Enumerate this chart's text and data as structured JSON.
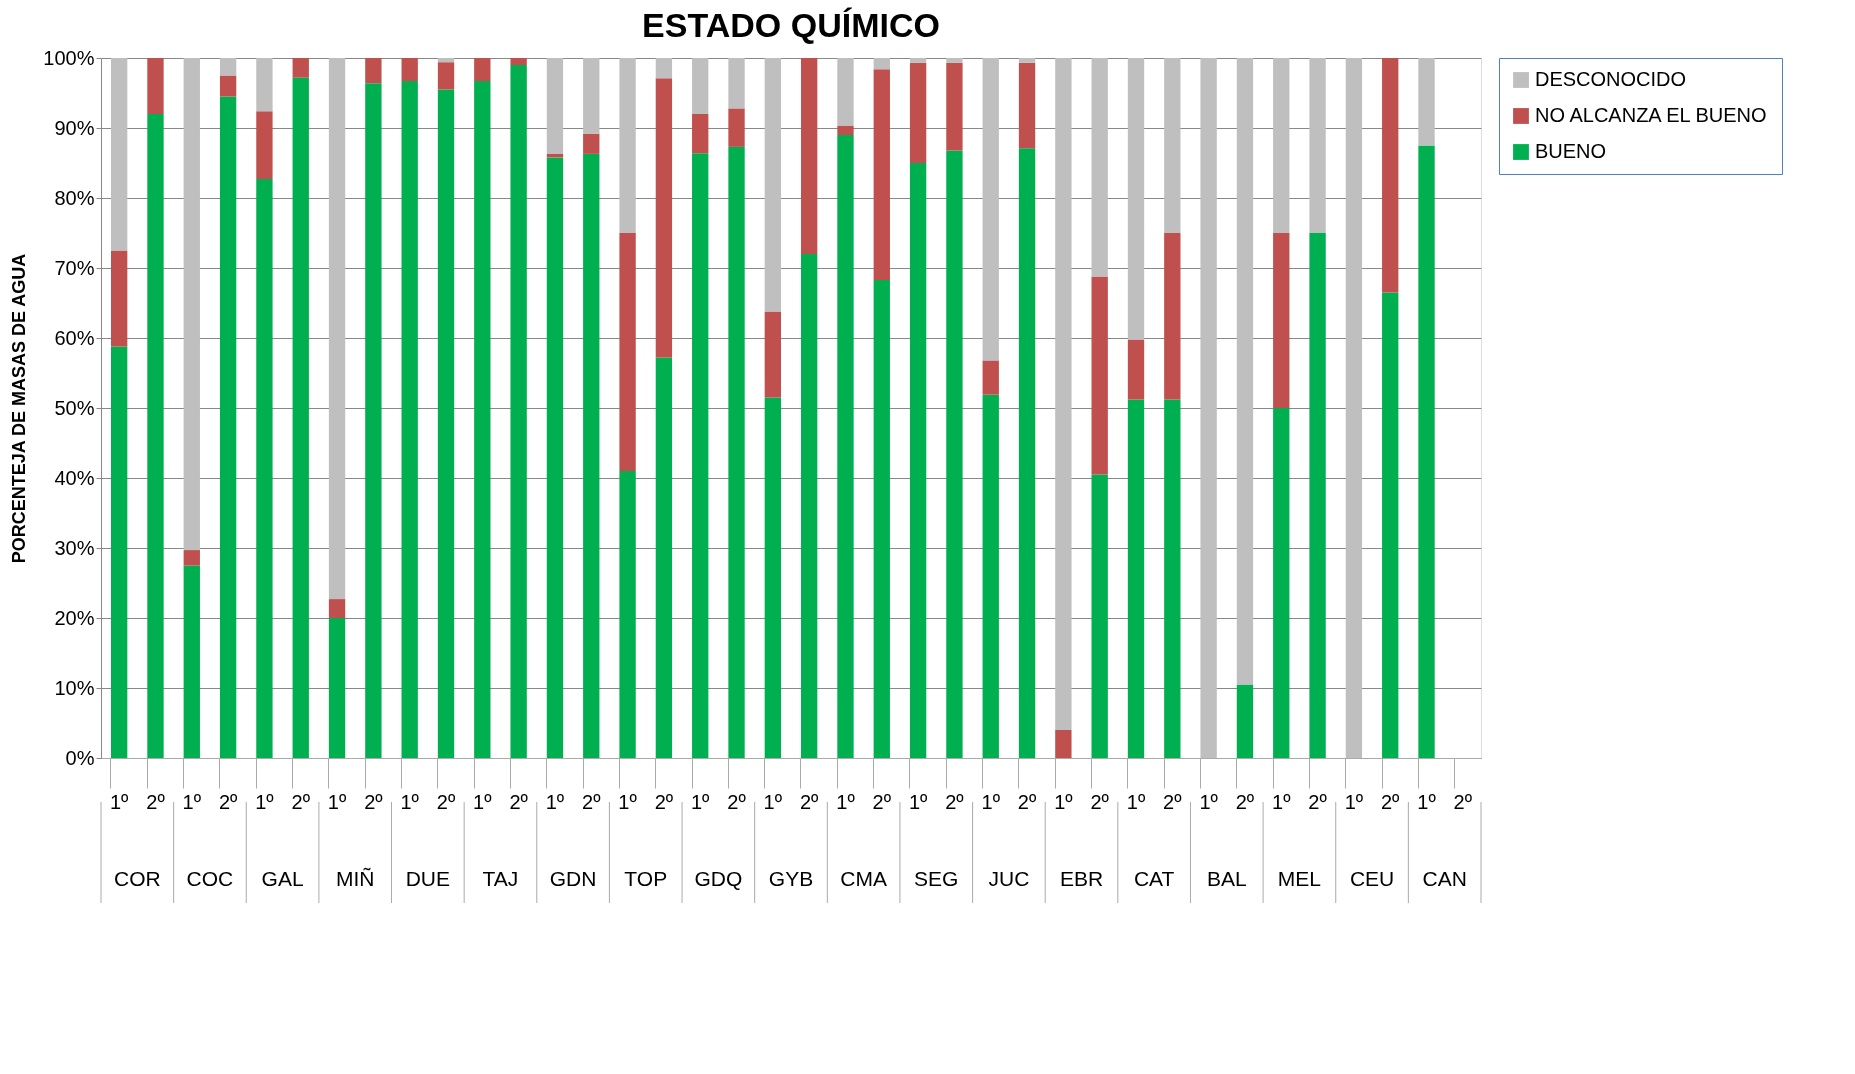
{
  "chart_data": {
    "type": "bar",
    "title": "ESTADO QUÍMICO",
    "ylabel": "PORCENTEJA DE MASAS DE AGUA",
    "categories": [
      "1º",
      "2º",
      "1º",
      "2º",
      "1º",
      "2º",
      "1º",
      "2º",
      "1º",
      "2º",
      "1º",
      "2º",
      "1º",
      "2º",
      "1º",
      "2º",
      "1º",
      "2º",
      "1º",
      "2º",
      "1º",
      "2º",
      "1º",
      "2º",
      "1º",
      "2º",
      "1º",
      "2º",
      "1º",
      "2º",
      "1º",
      "2º",
      "1º",
      "2º",
      "1º",
      "2º",
      "1º",
      "2º"
    ],
    "annotations": [
      "COR",
      "COC",
      "GAL",
      "MIÑ",
      "DUE",
      "TAJ",
      "GDN",
      "TOP",
      "GDQ",
      "GYB",
      "CMA",
      "SEG",
      "JUC",
      "EBR",
      "CAT",
      "BAL",
      "MEL",
      "CEU",
      "CAN"
    ],
    "stacked": true,
    "series": [
      {
        "name": "BUENO",
        "color": "#00b050",
        "values": [
          58.8,
          92,
          27.5,
          94.5,
          82.7,
          97.2,
          20,
          96.4,
          96.7,
          95.5,
          96.7,
          99,
          85.8,
          86.3,
          41,
          57.2,
          86.4,
          87.3,
          51.5,
          72,
          89,
          68.3,
          85,
          86.8,
          51.9,
          87.1,
          0,
          40.5,
          51.2,
          51.2,
          0,
          10.5,
          50,
          75,
          0,
          66.5,
          87.5,
          null
        ]
      },
      {
        "name": "NO ALCANZA EL BUENO",
        "color": "#c0504d",
        "values": [
          13.7,
          8,
          2.2,
          3,
          9.7,
          2.8,
          2.7,
          3.6,
          3.3,
          3.9,
          3.3,
          1,
          0.5,
          2.9,
          34,
          39.9,
          5.6,
          5.5,
          12.3,
          28,
          1.3,
          30.1,
          14.3,
          12.5,
          4.9,
          12.2,
          4,
          28.3,
          8.6,
          23.8,
          0,
          0,
          25,
          0,
          0,
          33.5,
          0,
          null
        ]
      },
      {
        "name": "DESCONOCIDO",
        "color": "#bfbfbf",
        "values": [
          27.5,
          0,
          70.3,
          2.5,
          7.6,
          0,
          77.3,
          0,
          0,
          0.6,
          0,
          0,
          13.7,
          10.8,
          25,
          2.9,
          8,
          7.2,
          36.2,
          0,
          9.7,
          1.6,
          0.7,
          0.7,
          43.2,
          0.7,
          96,
          31.2,
          40.2,
          25,
          100,
          89.5,
          25,
          25,
          100,
          0,
          12.5,
          null
        ]
      }
    ],
    "ylim": [
      0,
      100
    ],
    "yticks": [
      {
        "value": 0,
        "label": "0%"
      },
      {
        "value": 10,
        "label": "10%"
      },
      {
        "value": 20,
        "label": "20%"
      },
      {
        "value": 30,
        "label": "30%"
      },
      {
        "value": 40,
        "label": "40%"
      },
      {
        "value": 50,
        "label": "50%"
      },
      {
        "value": 60,
        "label": "60%"
      },
      {
        "value": 70,
        "label": "70%"
      },
      {
        "value": 80,
        "label": "80%"
      },
      {
        "value": 90,
        "label": "90%"
      },
      {
        "value": 100,
        "label": "100%"
      }
    ],
    "grid": "y",
    "legend": "right"
  }
}
